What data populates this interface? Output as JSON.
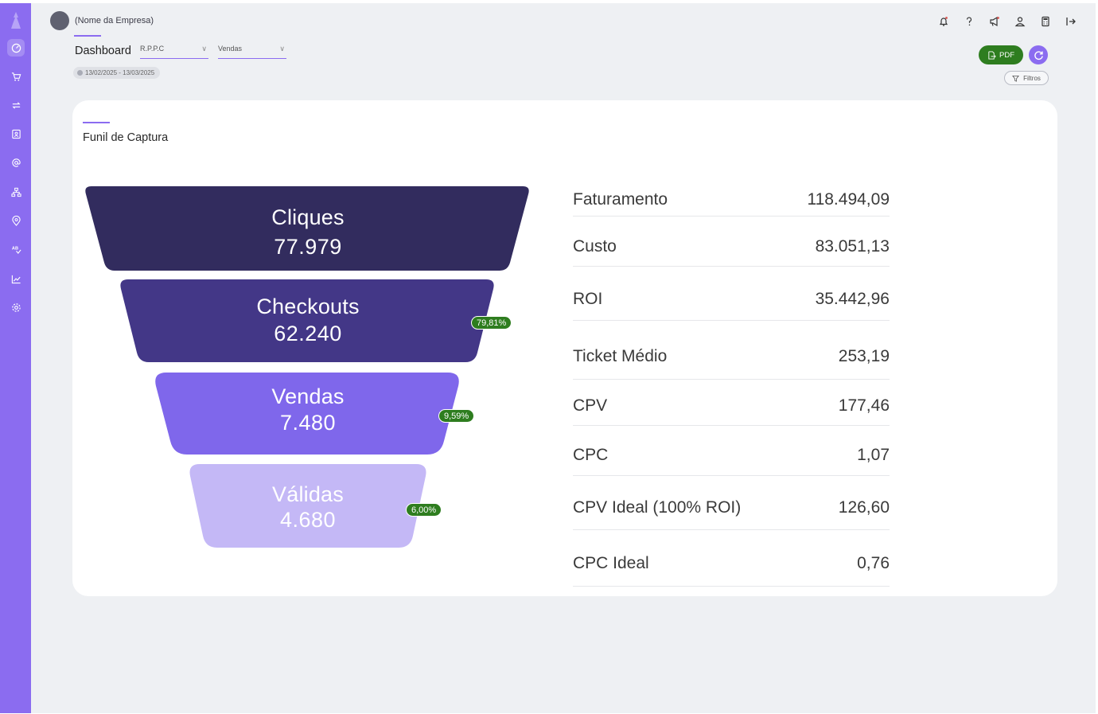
{
  "header": {
    "company_name": "(Nome da Empresa)",
    "page_title": "Dashboard",
    "select_campaign": "R.P.P.C",
    "select_metric": "Vendas",
    "date_range": "13/02/2025 - 13/03/2025",
    "pdf_label": "PDF",
    "filters_label": "Filtros",
    "icons": [
      "bell-icon",
      "help-icon",
      "megaphone-icon",
      "user-icon",
      "calculator-icon",
      "logout-icon"
    ]
  },
  "sidebar": {
    "icons": [
      "dashboard-icon",
      "cart-icon",
      "exchange-icon",
      "contact-icon",
      "at-icon",
      "hierarchy-icon",
      "location-icon",
      "ab-test-icon",
      "chart-icon",
      "settings-icon"
    ]
  },
  "card": {
    "title": "Funil de Captura"
  },
  "funnel": {
    "stages": [
      {
        "name": "Cliques",
        "value": "77.979",
        "color": "#322c5e"
      },
      {
        "name": "Checkouts",
        "value": "62.240",
        "color": "#433787",
        "pct": "79,81%"
      },
      {
        "name": "Vendas",
        "value": "7.480",
        "color": "#7f67eb",
        "pct": "9,59%"
      },
      {
        "name": "Válidas",
        "value": "4.680",
        "color": "#c4b8f6",
        "pct": "6,00%"
      }
    ]
  },
  "metrics": [
    {
      "label": "Faturamento",
      "value": "118.494,09"
    },
    {
      "label": "Custo",
      "value": "83.051,13"
    },
    {
      "label": "ROI",
      "value": "35.442,96"
    },
    {
      "label": "Ticket Médio",
      "value": "253,19"
    },
    {
      "label": "CPV",
      "value": "177,46"
    },
    {
      "label": "CPC",
      "value": "1,07"
    },
    {
      "label": "CPV Ideal (100% ROI)",
      "value": "126,60"
    },
    {
      "label": "CPC Ideal",
      "value": "0,76"
    }
  ],
  "colors": {
    "accent": "#8b6cf0",
    "success": "#2e7d1f",
    "background": "#eef0f3"
  }
}
